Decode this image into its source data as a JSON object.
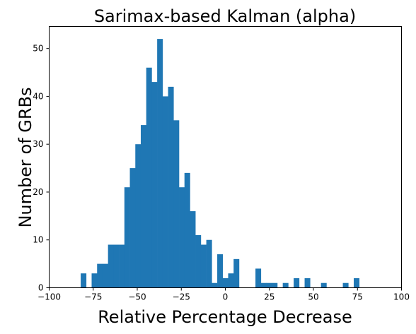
{
  "chart_data": {
    "type": "bar",
    "title": "Sarimax-based Kalman (alpha)",
    "xlabel": "Relative Percentage Decrease",
    "ylabel": "Number of GRBs",
    "xlim": [
      -100,
      100
    ],
    "ylim": [
      0,
      54.6
    ],
    "grid": false,
    "bar_color": "#1f77b4",
    "xticks": [
      -100,
      -75,
      -50,
      -25,
      0,
      25,
      50,
      75,
      100
    ],
    "xtick_labels": [
      "−100",
      "−75",
      "−50",
      "−25",
      "0",
      "25",
      "50",
      "75",
      "100"
    ],
    "yticks": [
      0,
      10,
      20,
      30,
      40,
      50
    ],
    "ytick_labels": [
      "0",
      "10",
      "20",
      "30",
      "40",
      "50"
    ],
    "bins": [
      {
        "x0": -82.1,
        "x1": -79.0,
        "value": 3
      },
      {
        "x0": -79.0,
        "x1": -75.9,
        "value": 0
      },
      {
        "x0": -75.9,
        "x1": -72.8,
        "value": 3
      },
      {
        "x0": -72.8,
        "x1": -69.7,
        "value": 5
      },
      {
        "x0": -69.7,
        "x1": -66.6,
        "value": 5
      },
      {
        "x0": -66.6,
        "x1": -63.5,
        "value": 9
      },
      {
        "x0": -63.5,
        "x1": -60.4,
        "value": 9
      },
      {
        "x0": -60.4,
        "x1": -57.3,
        "value": 9
      },
      {
        "x0": -57.3,
        "x1": -54.2,
        "value": 21
      },
      {
        "x0": -54.2,
        "x1": -51.1,
        "value": 25
      },
      {
        "x0": -51.1,
        "x1": -48.0,
        "value": 30
      },
      {
        "x0": -48.0,
        "x1": -44.9,
        "value": 34
      },
      {
        "x0": -44.9,
        "x1": -41.8,
        "value": 46
      },
      {
        "x0": -41.8,
        "x1": -38.7,
        "value": 43
      },
      {
        "x0": -38.7,
        "x1": -35.6,
        "value": 52
      },
      {
        "x0": -35.6,
        "x1": -32.5,
        "value": 40
      },
      {
        "x0": -32.5,
        "x1": -29.4,
        "value": 42
      },
      {
        "x0": -29.4,
        "x1": -26.3,
        "value": 35
      },
      {
        "x0": -26.3,
        "x1": -23.2,
        "value": 21
      },
      {
        "x0": -23.2,
        "x1": -20.1,
        "value": 24
      },
      {
        "x0": -20.1,
        "x1": -17.0,
        "value": 16
      },
      {
        "x0": -17.0,
        "x1": -13.9,
        "value": 11
      },
      {
        "x0": -13.9,
        "x1": -10.8,
        "value": 9
      },
      {
        "x0": -10.8,
        "x1": -7.7,
        "value": 10
      },
      {
        "x0": -7.7,
        "x1": -4.6,
        "value": 1
      },
      {
        "x0": -4.6,
        "x1": -1.5,
        "value": 7
      },
      {
        "x0": -1.5,
        "x1": 1.6,
        "value": 2
      },
      {
        "x0": 1.6,
        "x1": 4.7,
        "value": 3
      },
      {
        "x0": 4.7,
        "x1": 7.8,
        "value": 6
      },
      {
        "x0": 7.8,
        "x1": 10.9,
        "value": 0
      },
      {
        "x0": 10.9,
        "x1": 14.0,
        "value": 0
      },
      {
        "x0": 14.0,
        "x1": 17.1,
        "value": 0
      },
      {
        "x0": 17.1,
        "x1": 20.2,
        "value": 4
      },
      {
        "x0": 20.2,
        "x1": 23.3,
        "value": 1
      },
      {
        "x0": 23.3,
        "x1": 26.4,
        "value": 1
      },
      {
        "x0": 26.4,
        "x1": 29.5,
        "value": 1
      },
      {
        "x0": 29.5,
        "x1": 32.6,
        "value": 0
      },
      {
        "x0": 32.6,
        "x1": 35.7,
        "value": 1
      },
      {
        "x0": 35.7,
        "x1": 38.8,
        "value": 0
      },
      {
        "x0": 38.8,
        "x1": 41.9,
        "value": 2
      },
      {
        "x0": 41.9,
        "x1": 45.0,
        "value": 0
      },
      {
        "x0": 45.0,
        "x1": 48.1,
        "value": 2
      },
      {
        "x0": 48.1,
        "x1": 51.2,
        "value": 0
      },
      {
        "x0": 51.2,
        "x1": 54.3,
        "value": 0
      },
      {
        "x0": 54.3,
        "x1": 57.4,
        "value": 1
      },
      {
        "x0": 57.4,
        "x1": 60.5,
        "value": 0
      },
      {
        "x0": 60.5,
        "x1": 63.6,
        "value": 0
      },
      {
        "x0": 63.6,
        "x1": 66.7,
        "value": 0
      },
      {
        "x0": 66.7,
        "x1": 69.8,
        "value": 1
      },
      {
        "x0": 69.8,
        "x1": 72.9,
        "value": 0
      },
      {
        "x0": 72.9,
        "x1": 76.0,
        "value": 2
      }
    ]
  }
}
